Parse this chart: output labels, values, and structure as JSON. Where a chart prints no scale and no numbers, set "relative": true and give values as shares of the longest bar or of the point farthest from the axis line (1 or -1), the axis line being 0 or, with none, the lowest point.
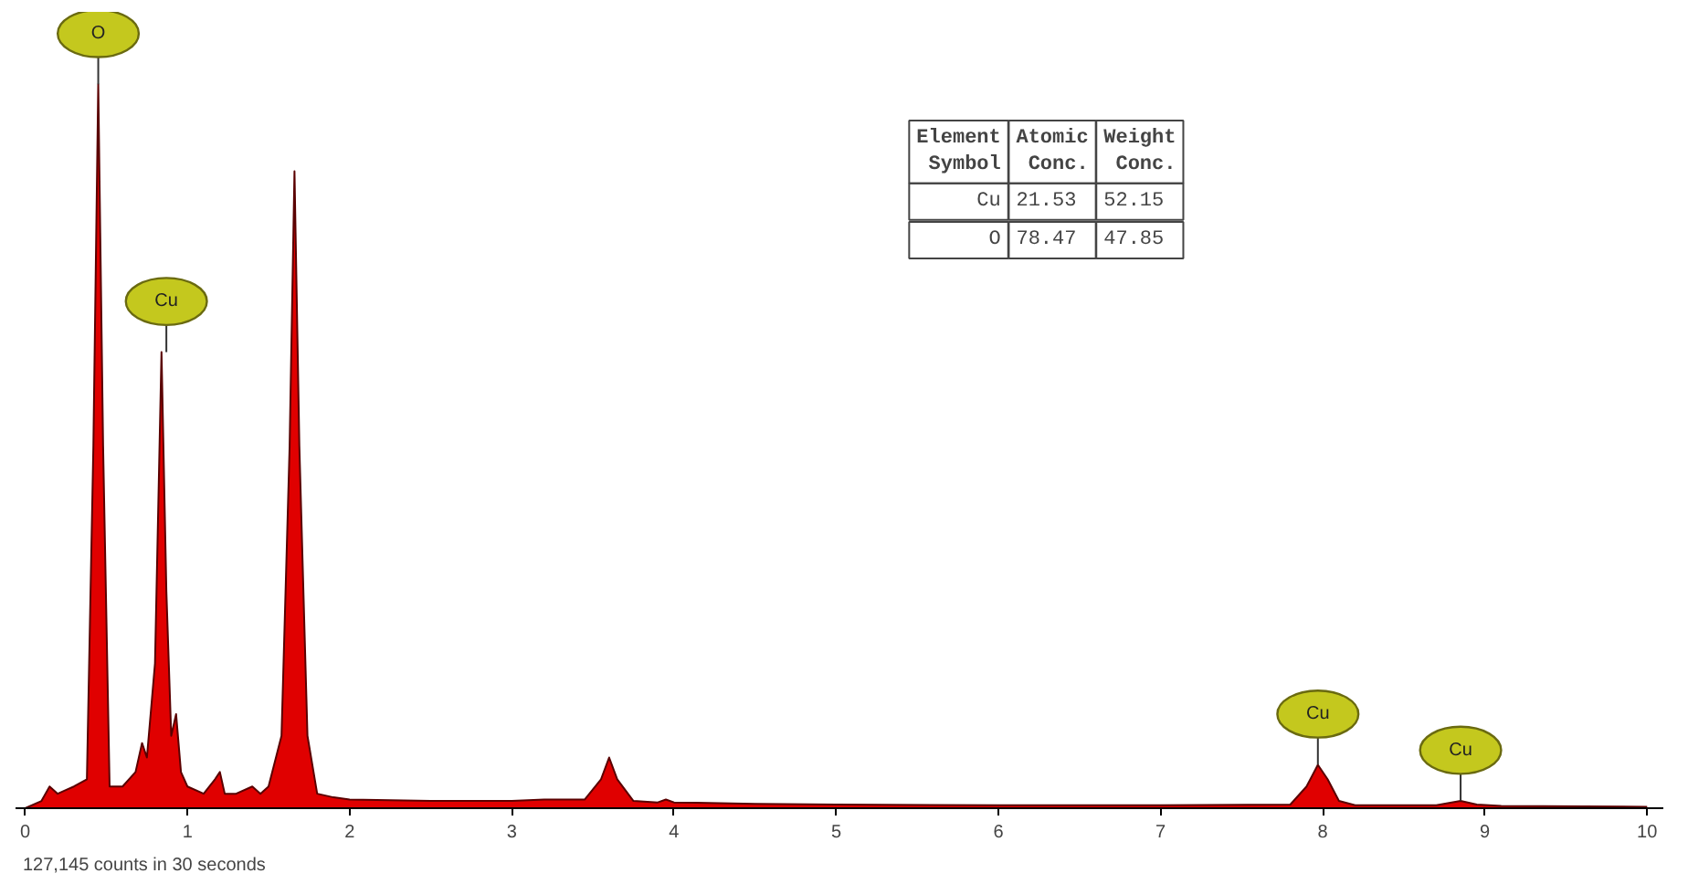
{
  "chart_data": {
    "type": "area",
    "relative": true,
    "color": "#e00000",
    "x": [
      0,
      0.1,
      0.15,
      0.2,
      0.25,
      0.3,
      0.38,
      0.42,
      0.45,
      0.48,
      0.52,
      0.6,
      0.68,
      0.72,
      0.75,
      0.8,
      0.84,
      0.87,
      0.9,
      0.93,
      0.96,
      1.0,
      1.1,
      1.17,
      1.2,
      1.23,
      1.3,
      1.4,
      1.45,
      1.5,
      1.58,
      1.63,
      1.66,
      1.69,
      1.74,
      1.8,
      1.9,
      2.0,
      2.5,
      2.9,
      3.0,
      3.2,
      3.45,
      3.55,
      3.6,
      3.65,
      3.75,
      3.9,
      3.95,
      4.0,
      4.5,
      5,
      6,
      7,
      7.8,
      7.9,
      7.97,
      8.03,
      8.1,
      8.2,
      8.7,
      8.85,
      8.95,
      9.1,
      10
    ],
    "values": [
      0,
      0.01,
      0.03,
      0.02,
      0.025,
      0.03,
      0.04,
      0.5,
      1.0,
      0.5,
      0.03,
      0.03,
      0.05,
      0.09,
      0.07,
      0.2,
      0.63,
      0.3,
      0.1,
      0.13,
      0.05,
      0.03,
      0.02,
      0.04,
      0.05,
      0.02,
      0.02,
      0.03,
      0.02,
      0.03,
      0.1,
      0.5,
      0.88,
      0.5,
      0.1,
      0.02,
      0.015,
      0.012,
      0.01,
      0.01,
      0.01,
      0.012,
      0.012,
      0.04,
      0.07,
      0.04,
      0.01,
      0.008,
      0.012,
      0.008,
      0.006,
      0.005,
      0.004,
      0.004,
      0.005,
      0.03,
      0.06,
      0.04,
      0.01,
      0.004,
      0.004,
      0.01,
      0.005,
      0.003,
      0.002
    ],
    "xlim": [
      -0.06,
      10.1
    ],
    "xticks": [
      0,
      1,
      2,
      3,
      4,
      5,
      6,
      7,
      8,
      9,
      10
    ],
    "grid": false,
    "annotations": [
      {
        "text": "O",
        "x": 0.45,
        "y": 1.0
      },
      {
        "text": "Cu",
        "x": 0.87,
        "y": 0.63
      },
      {
        "text": "Cu",
        "x": 7.97,
        "y": 0.06
      },
      {
        "text": "Cu",
        "x": 8.85,
        "y": 0.01
      },
      "127,145 counts in 30 seconds",
      "Element Symbol",
      "Atomic Conc.",
      "Weight Conc.",
      "Cu",
      "21.53",
      "52.15",
      "O",
      "78.47",
      "47.85"
    ]
  }
}
